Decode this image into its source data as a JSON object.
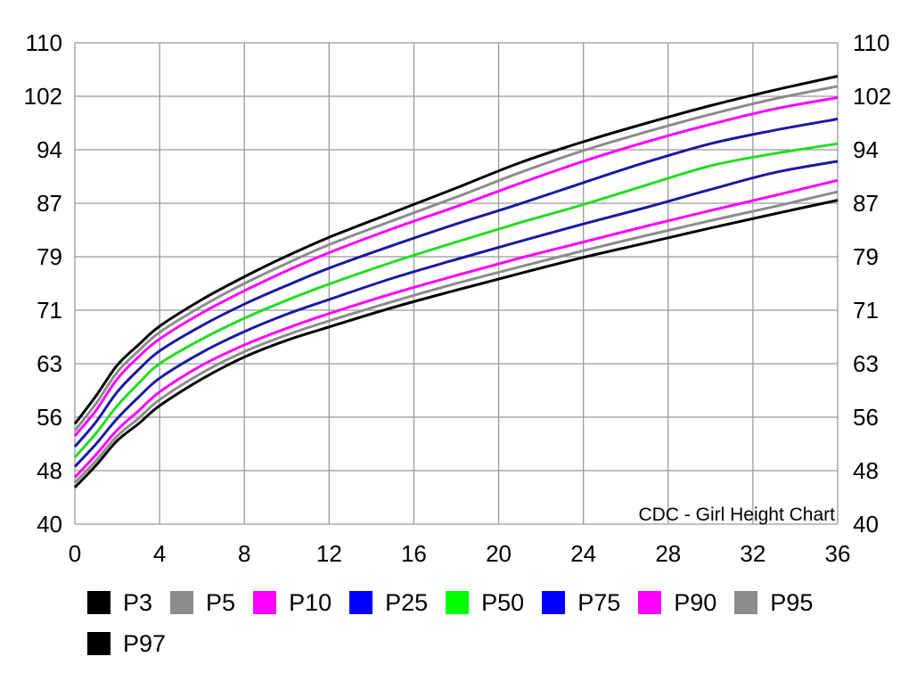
{
  "chart_data": {
    "type": "line",
    "description": "CDC - Girl Height Chart",
    "xlim": [
      0,
      36
    ],
    "ylim": [
      40,
      110
    ],
    "x_ticks": [
      "0",
      "4",
      "8",
      "12",
      "16",
      "20",
      "24",
      "28",
      "32",
      "36"
    ],
    "y_ticks": [
      "40",
      "48",
      "56",
      "63",
      "71",
      "79",
      "87",
      "94",
      "102",
      "110"
    ],
    "grid": true,
    "legend_position": "bottom",
    "x": [
      0,
      1,
      2,
      3,
      4,
      6,
      8,
      10,
      12,
      15,
      18,
      21,
      24,
      27,
      30,
      33,
      36
    ],
    "series": [
      {
        "name": "P3",
        "color": "#000000",
        "values": [
          45.5,
          48.8,
          52.5,
          55.0,
          57.5,
          61.0,
          64.0,
          66.5,
          68.5,
          71.4,
          74.0,
          76.5,
          78.9,
          81.1,
          83.3,
          85.4,
          87.4
        ]
      },
      {
        "name": "P5",
        "color": "#8c8c8c",
        "values": [
          46.2,
          49.5,
          53.2,
          55.8,
          58.3,
          61.8,
          64.8,
          67.3,
          69.4,
          72.3,
          75.0,
          77.5,
          79.9,
          82.2,
          84.4,
          86.5,
          88.5
        ]
      },
      {
        "name": "P10",
        "color": "#ff00ff",
        "values": [
          47.0,
          50.4,
          54.1,
          56.8,
          59.3,
          62.8,
          65.8,
          68.3,
          70.5,
          73.5,
          76.2,
          78.8,
          81.2,
          83.6,
          85.9,
          88.0,
          90.0
        ]
      },
      {
        "name": "P25",
        "color": "#1a1aa0",
        "values": [
          48.6,
          52.0,
          55.8,
          58.6,
          61.1,
          64.7,
          67.8,
          70.4,
          72.6,
          75.8,
          78.6,
          81.3,
          83.9,
          86.4,
          88.8,
          91.0,
          92.5
        ]
      },
      {
        "name": "P50",
        "color": "#22dd22",
        "values": [
          50.0,
          53.6,
          57.5,
          60.4,
          63.0,
          66.7,
          69.8,
          72.5,
          74.9,
          78.2,
          81.2,
          84.1,
          86.8,
          89.4,
          91.9,
          93.5,
          94.9
        ]
      },
      {
        "name": "P75",
        "color": "#1a1aa0",
        "values": [
          51.6,
          55.3,
          59.3,
          62.2,
          64.9,
          68.7,
          71.9,
          74.7,
          77.3,
          80.7,
          83.9,
          86.9,
          89.7,
          92.4,
          94.9,
          96.9,
          98.6
        ]
      },
      {
        "name": "P90",
        "color": "#ff00ff",
        "values": [
          53.2,
          56.9,
          61.0,
          64.0,
          66.7,
          70.6,
          73.9,
          76.9,
          79.6,
          83.2,
          86.5,
          89.6,
          92.5,
          95.2,
          97.8,
          100.1,
          101.8
        ]
      },
      {
        "name": "P95",
        "color": "#8c8c8c",
        "values": [
          54.0,
          57.8,
          61.9,
          64.9,
          67.7,
          71.6,
          75.0,
          78.0,
          80.8,
          84.4,
          87.8,
          91.0,
          93.9,
          96.7,
          99.3,
          101.6,
          103.5
        ]
      },
      {
        "name": "P97",
        "color": "#000000",
        "values": [
          55.0,
          58.8,
          62.8,
          65.8,
          68.6,
          72.6,
          76.0,
          79.1,
          81.9,
          85.6,
          89.0,
          92.3,
          95.2,
          98.0,
          100.6,
          102.9,
          105.0
        ]
      }
    ]
  },
  "legend": [
    {
      "label": "P3",
      "color": "#000000"
    },
    {
      "label": "P5",
      "color": "#8c8c8c"
    },
    {
      "label": "P10",
      "color": "#ff00ff"
    },
    {
      "label": "P25",
      "color": "#0000ff"
    },
    {
      "label": "P50",
      "color": "#00ff00"
    },
    {
      "label": "P75",
      "color": "#0000ff"
    },
    {
      "label": "P90",
      "color": "#ff00ff"
    },
    {
      "label": "P95",
      "color": "#8c8c8c"
    },
    {
      "label": "P97",
      "color": "#000000"
    }
  ]
}
